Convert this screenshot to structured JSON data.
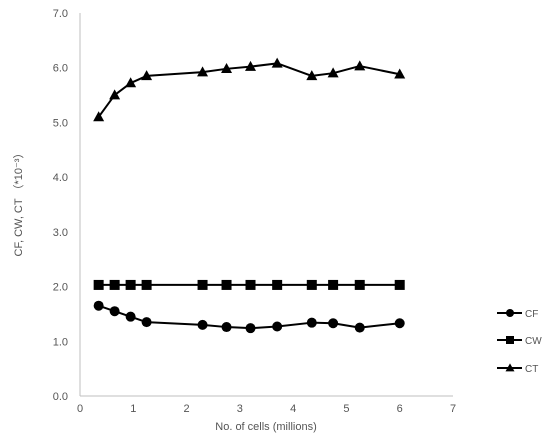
{
  "chart_data": {
    "type": "line",
    "title": "",
    "xlabel": "No. of cells  (millions)",
    "ylabel": "CF, CW, CT  （*10⁻³）",
    "xlim": [
      0,
      7
    ],
    "ylim": [
      0.0,
      7.0
    ],
    "x_ticks": [
      "0",
      "1",
      "2",
      "3",
      "4",
      "5",
      "6",
      "7"
    ],
    "y_ticks": [
      "0.0",
      "1.0",
      "2.0",
      "3.0",
      "4.0",
      "5.0",
      "6.0",
      "7.0"
    ],
    "grid": false,
    "legend_position": "right",
    "series": [
      {
        "name": "CF",
        "marker": "circle",
        "x": [
          0.35,
          0.65,
          0.95,
          1.25,
          2.3,
          2.75,
          3.2,
          3.7,
          4.35,
          4.75,
          5.25,
          6.0
        ],
        "y": [
          1.65,
          1.55,
          1.45,
          1.35,
          1.3,
          1.26,
          1.24,
          1.27,
          1.34,
          1.33,
          1.25,
          1.33
        ]
      },
      {
        "name": "CW",
        "marker": "square",
        "x": [
          0.35,
          0.65,
          0.95,
          1.25,
          2.3,
          2.75,
          3.2,
          3.7,
          4.35,
          4.75,
          5.25,
          6.0
        ],
        "y": [
          2.03,
          2.03,
          2.03,
          2.03,
          2.03,
          2.03,
          2.03,
          2.03,
          2.03,
          2.03,
          2.03,
          2.03
        ]
      },
      {
        "name": "CT",
        "marker": "triangle",
        "x": [
          0.35,
          0.65,
          0.95,
          1.25,
          2.3,
          2.75,
          3.2,
          3.7,
          4.35,
          4.75,
          5.25,
          6.0
        ],
        "y": [
          5.1,
          5.5,
          5.72,
          5.85,
          5.92,
          5.98,
          6.02,
          6.08,
          5.85,
          5.9,
          6.03,
          5.88
        ]
      }
    ]
  }
}
